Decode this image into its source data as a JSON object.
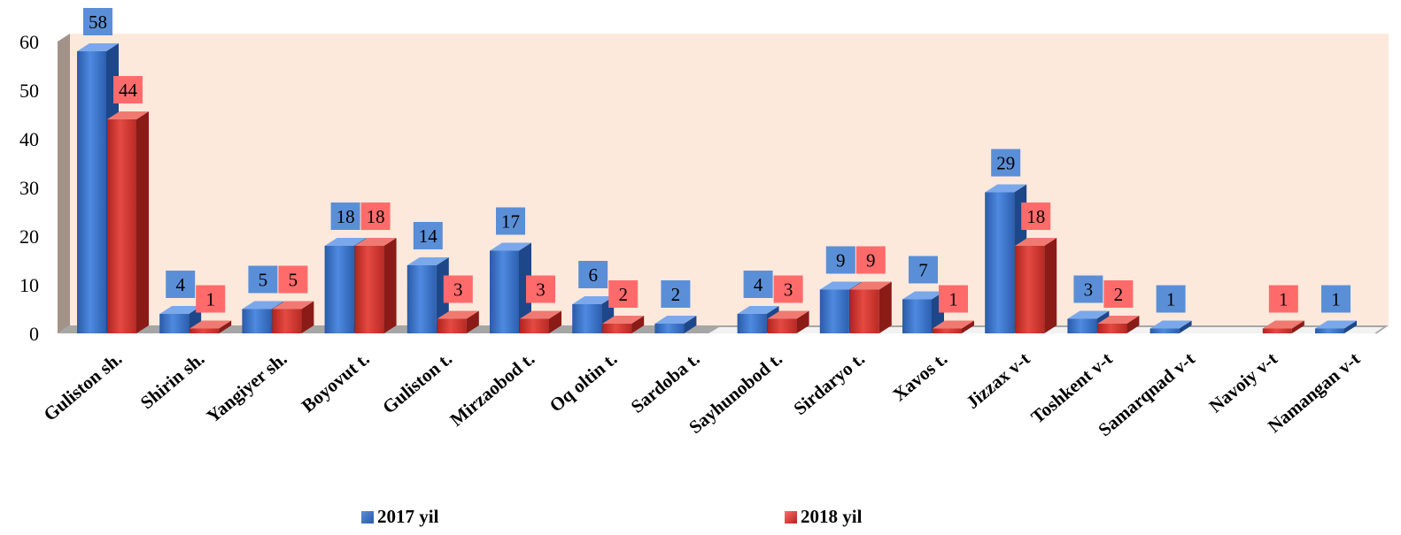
{
  "chart_data": {
    "type": "bar",
    "categories": [
      "Guliston sh.",
      "Shirin sh.",
      "Yangiyer sh.",
      "Boyovut t.",
      "Guliston t.",
      "Mirzaobod t.",
      "Oq oltin t.",
      "Sardoba t.",
      "Sayhunobod t.",
      "Sirdaryo t.",
      "Xavos t.",
      "Jizzax v-t",
      "Toshkent v-t",
      "Samarqnad v-t",
      "Navoiy v-t",
      "Namangan v-t"
    ],
    "series": [
      {
        "name": "2017 yil",
        "values": [
          58,
          4,
          5,
          18,
          14,
          17,
          6,
          2,
          4,
          9,
          7,
          29,
          3,
          1,
          null,
          1
        ]
      },
      {
        "name": "2018 yil",
        "values": [
          44,
          1,
          5,
          18,
          3,
          3,
          2,
          null,
          3,
          9,
          1,
          18,
          2,
          null,
          1,
          null
        ]
      }
    ],
    "yticks": [
      "0",
      "10",
      "20",
      "30",
      "40",
      "50",
      "60"
    ],
    "ylim": [
      0,
      60
    ],
    "grid": false,
    "legend_position": "bottom",
    "colors": {
      "series_2017": "#3a70c8",
      "series_2018": "#d8352f",
      "label_2017": "#5a8fd8",
      "label_2018": "#ff6b6b",
      "back_wall": "#fde9dc",
      "side_wall": "#a39287",
      "floor": "#a6a6a6"
    }
  },
  "legend": {
    "items": [
      {
        "label": "2017 yil",
        "color": "#3a70c8"
      },
      {
        "label": "2018 yil",
        "color": "#d8352f"
      }
    ]
  }
}
